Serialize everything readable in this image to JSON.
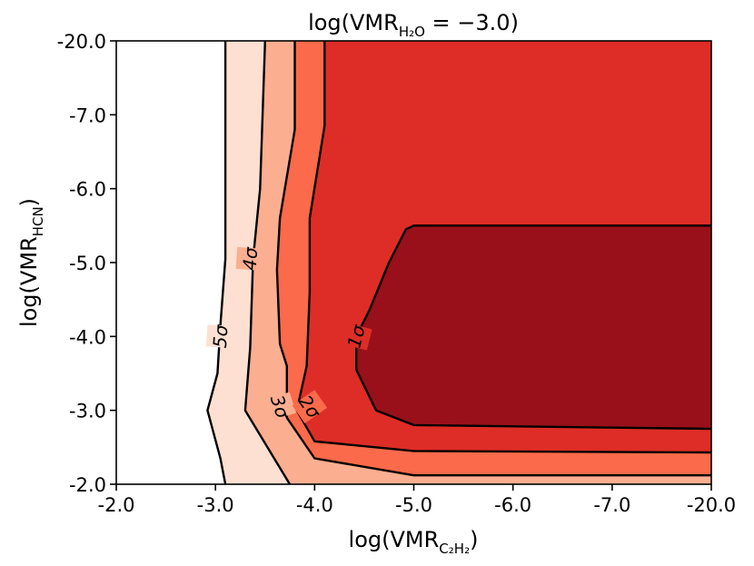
{
  "chart_data": {
    "type": "contour",
    "title": {
      "prefix": "log(VMR",
      "sub": "H₂O",
      "suffix": " = −3.0)"
    },
    "xlabel": {
      "prefix": "log(VMR",
      "sub": "C₂H₂",
      "suffix": ")"
    },
    "ylabel": {
      "prefix": "log(VMR",
      "sub": "HCN",
      "suffix": ")"
    },
    "x_tick_labels": [
      "-2.0",
      "-3.0",
      "-4.0",
      "-5.0",
      "-6.0",
      "-7.0",
      "-20.0"
    ],
    "y_tick_labels": [
      "-2.0",
      "-3.0",
      "-4.0",
      "-5.0",
      "-6.0",
      "-7.0",
      "-20.0"
    ],
    "xlim": [
      0,
      6
    ],
    "ylim": [
      0,
      6
    ],
    "grid": false,
    "legend": "none",
    "region_colors": {
      "outside": "#ffffff",
      "5sigma": "#fee0d2",
      "4sigma": "#fcae91",
      "3sigma": "#fb6a4a",
      "2sigma": "#de2d26",
      "1sigma": "#99101a"
    },
    "contours": [
      {
        "label": "5σ",
        "points": [
          [
            1.1,
            0.0
          ],
          [
            1.05,
            0.35
          ],
          [
            0.92,
            1.0
          ],
          [
            1.02,
            1.5
          ],
          [
            1.05,
            2.15
          ],
          [
            1.1,
            3.05
          ],
          [
            1.1,
            6.0
          ]
        ]
      },
      {
        "label": "4σ",
        "points": [
          [
            1.75,
            0.0
          ],
          [
            1.3,
            1.0
          ],
          [
            1.35,
            1.85
          ],
          [
            1.38,
            3.05
          ],
          [
            1.45,
            4.0
          ],
          [
            1.5,
            6.0
          ]
        ]
      },
      {
        "label": "3σ",
        "points": [
          [
            6.0,
            0.12
          ],
          [
            3.0,
            0.12
          ],
          [
            2.0,
            0.35
          ],
          [
            1.72,
            0.9
          ],
          [
            1.72,
            1.6
          ],
          [
            1.65,
            1.9
          ],
          [
            1.62,
            2.9
          ],
          [
            1.65,
            3.6
          ],
          [
            1.8,
            4.8
          ],
          [
            1.8,
            6.0
          ]
        ]
      },
      {
        "label": "2σ",
        "points": [
          [
            6.0,
            0.43
          ],
          [
            3.0,
            0.45
          ],
          [
            2.0,
            0.58
          ],
          [
            1.82,
            1.0
          ],
          [
            1.92,
            1.6
          ],
          [
            1.95,
            2.6
          ],
          [
            1.95,
            3.6
          ],
          [
            2.1,
            4.85
          ],
          [
            2.1,
            6.0
          ]
        ]
      },
      {
        "label": "1σ",
        "points": [
          [
            6.0,
            0.75
          ],
          [
            3.0,
            0.8
          ],
          [
            2.62,
            1.0
          ],
          [
            2.42,
            1.55
          ],
          [
            2.42,
            2.0
          ],
          [
            2.55,
            2.35
          ],
          [
            2.75,
            3.0
          ],
          [
            2.92,
            3.45
          ],
          [
            3.0,
            3.5
          ],
          [
            4.0,
            3.5
          ],
          [
            6.0,
            3.5
          ]
        ]
      }
    ],
    "contour_labels": [
      {
        "text": "5σ",
        "at": [
          1.05,
          2.0
        ],
        "rotate": -86
      },
      {
        "text": "4σ",
        "at": [
          1.35,
          3.05
        ],
        "rotate": -86
      },
      {
        "text": "3σ",
        "at": [
          1.65,
          1.05
        ],
        "rotate": 72
      },
      {
        "text": "2σ",
        "at": [
          1.95,
          1.05
        ],
        "rotate": 55
      },
      {
        "text": "1σ",
        "at": [
          2.42,
          2.0
        ],
        "rotate": -76
      }
    ]
  }
}
